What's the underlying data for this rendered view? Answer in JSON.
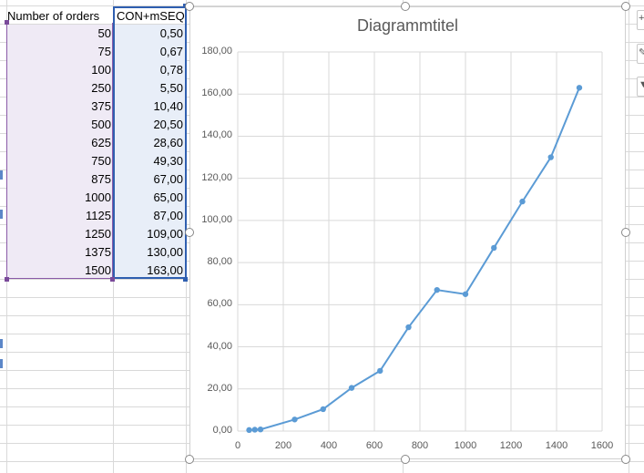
{
  "table": {
    "header_a": "Number of orders",
    "header_b": "CON+mSEQ",
    "rows": [
      {
        "orders": "50",
        "value": "0,50"
      },
      {
        "orders": "75",
        "value": "0,67"
      },
      {
        "orders": "100",
        "value": "0,78"
      },
      {
        "orders": "250",
        "value": "5,50"
      },
      {
        "orders": "375",
        "value": "10,40"
      },
      {
        "orders": "500",
        "value": "20,50"
      },
      {
        "orders": "625",
        "value": "28,60"
      },
      {
        "orders": "750",
        "value": "49,30"
      },
      {
        "orders": "875",
        "value": "67,00"
      },
      {
        "orders": "1000",
        "value": "65,00"
      },
      {
        "orders": "1125",
        "value": "87,00"
      },
      {
        "orders": "1250",
        "value": "109,00"
      },
      {
        "orders": "1375",
        "value": "130,00"
      },
      {
        "orders": "1500",
        "value": "163,00"
      }
    ]
  },
  "chart_data": {
    "type": "scatter",
    "title": "Diagrammtitel",
    "x": [
      50,
      75,
      100,
      250,
      375,
      500,
      625,
      750,
      875,
      1000,
      1125,
      1250,
      1375,
      1500
    ],
    "y": [
      0.5,
      0.67,
      0.78,
      5.5,
      10.4,
      20.5,
      28.6,
      49.3,
      67.0,
      65.0,
      87.0,
      109.0,
      130.0,
      163.0
    ],
    "xlim": [
      0,
      1600
    ],
    "ylim": [
      0,
      180
    ],
    "x_ticks": [
      "0",
      "200",
      "400",
      "600",
      "800",
      "1000",
      "1200",
      "1400",
      "1600"
    ],
    "y_ticks": [
      "0,00",
      "20,00",
      "40,00",
      "60,00",
      "80,00",
      "100,00",
      "120,00",
      "140,00",
      "160,00",
      "180,00"
    ],
    "grid": true,
    "line_color": "#5b9bd5",
    "marker_color": "#5b9bd5",
    "connected_lines": true
  },
  "colors": {
    "selection_purple": "#8a5aa8",
    "selection_blue": "#2f5fb0",
    "col_a_fill": "#efeaf5",
    "col_b_fill": "#e8eef8"
  },
  "icons": [
    "chart-elements-icon",
    "chart-styles-icon",
    "chart-filter-icon"
  ]
}
